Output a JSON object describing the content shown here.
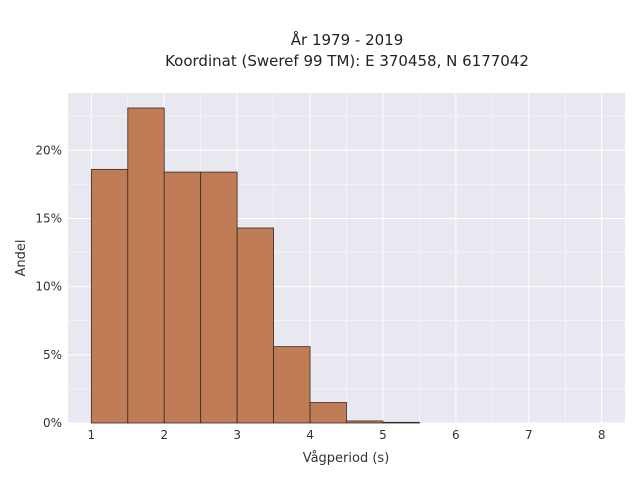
{
  "chart_data": {
    "type": "bar",
    "title_lines": [
      "År 1979 - 2019",
      "Koordinat (Sweref 99 TM): E 370458, N 6177042"
    ],
    "xlabel": "Vågperiod (s)",
    "ylabel": "Andel",
    "bin_edges": [
      1,
      1.5,
      2,
      2.5,
      3,
      3.5,
      4,
      4.5,
      5,
      5.5
    ],
    "values": [
      0.186,
      0.231,
      0.184,
      0.184,
      0.143,
      0.056,
      0.015,
      0.0015,
      0.0005
    ],
    "xlim": [
      0.68,
      8.32
    ],
    "ylim": [
      0,
      0.242
    ],
    "xticks": [
      1,
      2,
      3,
      4,
      5,
      6,
      7,
      8
    ],
    "xtick_labels": [
      "1",
      "2",
      "3",
      "4",
      "5",
      "6",
      "7",
      "8"
    ],
    "yticks": [
      0,
      0.05,
      0.1,
      0.15,
      0.2
    ],
    "ytick_labels": [
      "0%",
      "5%",
      "10%",
      "15%",
      "20%"
    ],
    "grid": true,
    "colors": {
      "bar_fill": "#bf7c56",
      "bar_edge": "#3a2a20",
      "plot_background": "#e8e8f1",
      "grid": "#ffffff"
    }
  }
}
